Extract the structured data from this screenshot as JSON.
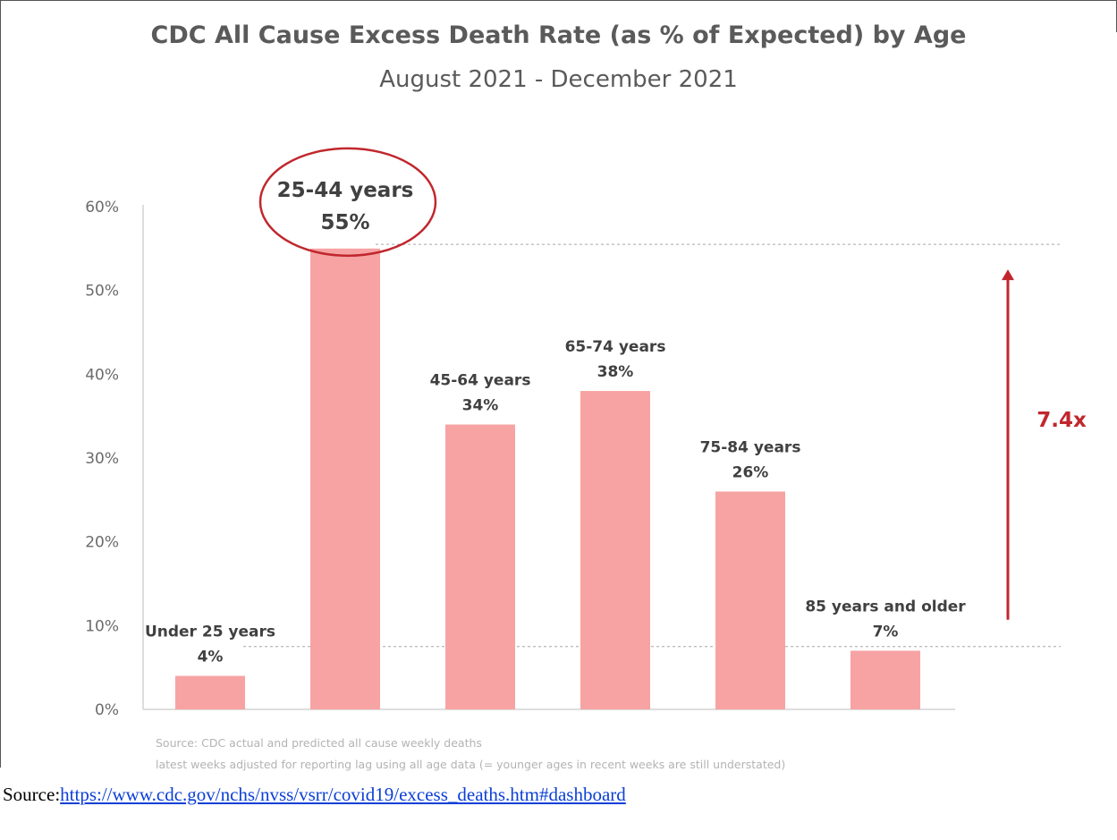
{
  "chart_data": {
    "type": "bar",
    "title": "CDC All Cause Excess Death Rate (as % of Expected) by Age",
    "subtitle": "August 2021 - December 2021",
    "categories": [
      "Under 25 years",
      "25-44 years",
      "45-64 years",
      "65-74 years",
      "75-84 years",
      "85 years and older"
    ],
    "values": [
      4,
      55,
      34,
      38,
      26,
      7
    ],
    "value_labels": [
      "4%",
      "55%",
      "34%",
      "38%",
      "26%",
      "7%"
    ],
    "yticks": [
      "0%",
      "10%",
      "20%",
      "30%",
      "40%",
      "50%",
      "60%"
    ],
    "ylim": [
      0,
      60
    ],
    "grid": false,
    "bar_color": "#f7a3a3",
    "highlight_category": "25-44 years",
    "highlight_color": "#c0272d",
    "annotation": {
      "text": "7.4x",
      "from_value": 7.5,
      "to_value": 55.5,
      "color": "#c0272d"
    }
  },
  "notes": {
    "line1": "Source: CDC actual and predicted all cause weekly deaths",
    "line2": "latest weeks adjusted for reporting lag using all age data (= younger ages in recent weeks are still understated)"
  },
  "source": {
    "label": "Source:",
    "url": "https://www.cdc.gov/nchs/nvss/vsrr/covid19/excess_deaths.htm#dashboard"
  }
}
